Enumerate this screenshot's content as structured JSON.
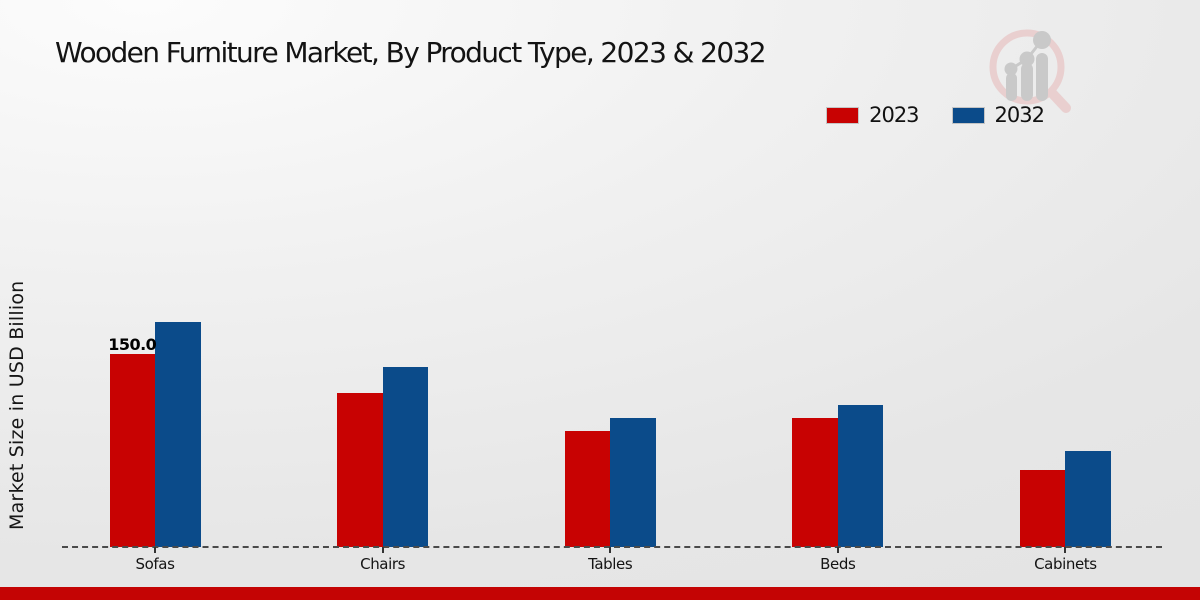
{
  "title": "Wooden Furniture Market, By Product Type, 2023 & 2032",
  "ylabel": "Market Size in USD Billion",
  "legend": {
    "position": "upper right",
    "items": [
      {
        "label": "2023",
        "color": "#c80202"
      },
      {
        "label": "2032",
        "color": "#0b4b8a"
      }
    ]
  },
  "chart_data": {
    "type": "bar",
    "title": "Wooden Furniture Market, By Product Type, 2023 & 2032",
    "xlabel": "",
    "ylabel": "Market Size in USD Billion",
    "unit": "USD Billion",
    "categories": [
      "Sofas",
      "Chairs",
      "Tables",
      "Beds",
      "Cabinets"
    ],
    "series": [
      {
        "name": "2023",
        "color": "#c80202",
        "values": [
          150,
          120,
          90,
          100,
          60
        ]
      },
      {
        "name": "2032",
        "color": "#0b4b8a",
        "values": [
          175,
          140,
          100,
          110,
          75
        ]
      }
    ],
    "ylim": [
      0,
      190
    ],
    "grid": false,
    "baseline_style": "dashed",
    "legend_position": "upper right",
    "annotations": [
      {
        "series": "2023",
        "category": "Sofas",
        "text": "150.0"
      }
    ]
  },
  "footer": {
    "color": "#c40404"
  },
  "watermark": {
    "name": "market-research-magnifier-logo",
    "ring_color": "#e9cfcf",
    "bars_color": "#c9c9c9"
  }
}
